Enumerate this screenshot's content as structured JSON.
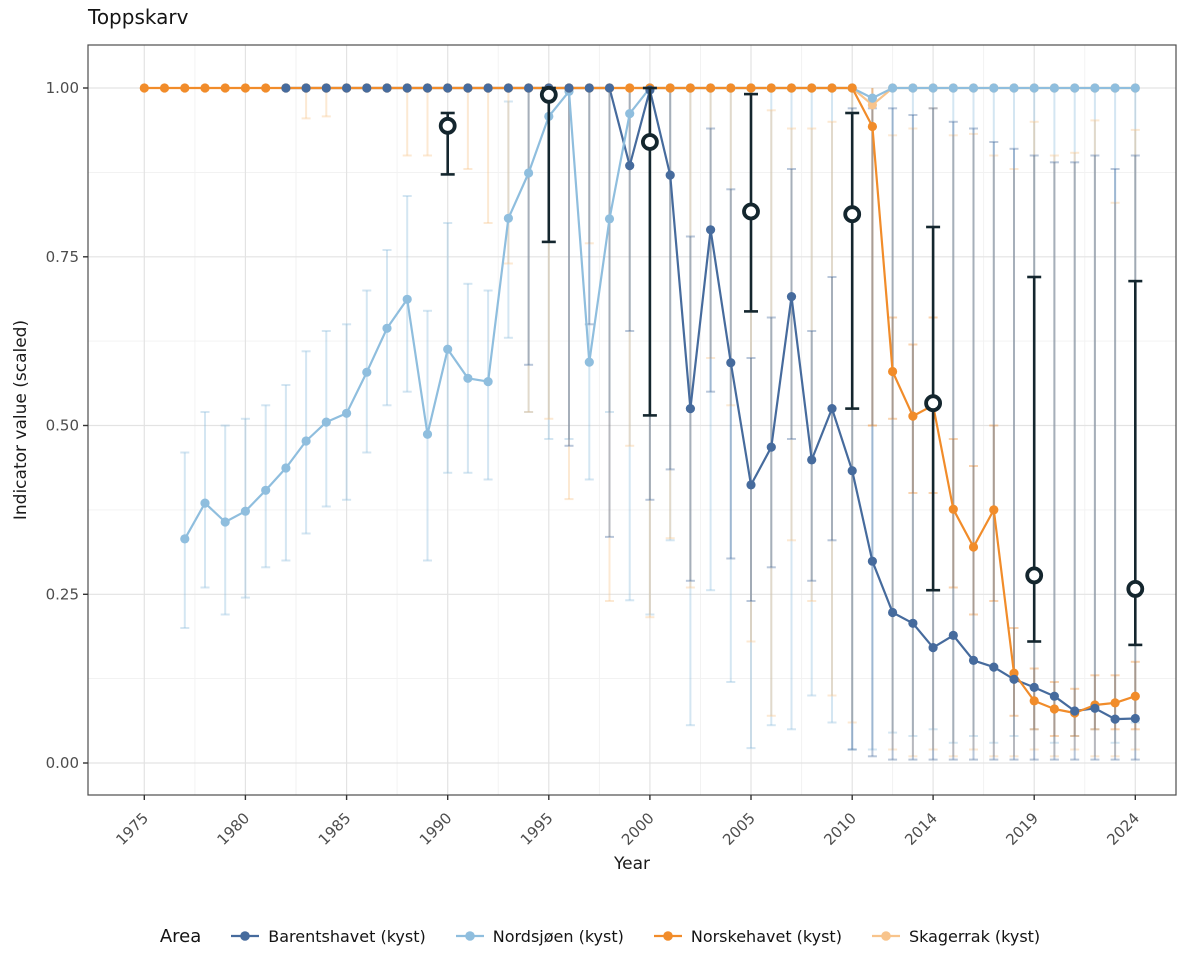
{
  "chart_data": {
    "type": "line",
    "title": "Toppskarv",
    "xlabel": "Year",
    "ylabel": "Indicator value (scaled)",
    "legend_title": "Area",
    "legend_position": "bottom",
    "grid": true,
    "xlim": [
      1972.2,
      2026.0
    ],
    "ylim": [
      -0.047,
      1.064
    ],
    "x_ticks": [
      1975,
      1980,
      1985,
      1990,
      1995,
      2000,
      2005,
      2010,
      2014,
      2019,
      2024
    ],
    "x_minor": [
      1977.5,
      1982.5,
      1987.5,
      1992.5,
      1997.5,
      2002.5,
      2007.5,
      2012,
      2016.5,
      2021.5
    ],
    "y_tick_values": [
      0,
      0.25,
      0.5,
      0.75,
      1.0
    ],
    "y_tick_labels": [
      "0.00",
      "0.25",
      "0.50",
      "0.75",
      "1.00"
    ],
    "y_minor": [
      0.125,
      0.375,
      0.625,
      0.875
    ],
    "series": [
      {
        "name": "Barentshavet (kyst)",
        "color": "#466b9d",
        "years": [
          1982,
          1983,
          1984,
          1985,
          1986,
          1987,
          1988,
          1989,
          1990,
          1991,
          1992,
          1993,
          1994,
          1995,
          1996,
          1997,
          1998,
          1999,
          2000,
          2001,
          2002,
          2003,
          2004,
          2005,
          2006,
          2007,
          2008,
          2009,
          2010,
          2011,
          2012,
          2013,
          2014,
          2015,
          2016,
          2017,
          2018,
          2019,
          2020,
          2021,
          2022,
          2023,
          2024
        ],
        "values": [
          1,
          1,
          1,
          1,
          1,
          1,
          1,
          1,
          1,
          1,
          1,
          1,
          1,
          1,
          1,
          1,
          1,
          0.885,
          0.997,
          0.871,
          0.525,
          0.79,
          0.593,
          0.412,
          0.468,
          0.691,
          0.449,
          0.525,
          0.433,
          0.299,
          0.223,
          0.207,
          0.171,
          0.189,
          0.152,
          0.142,
          0.124,
          0.112,
          0.099,
          0.077,
          0.081,
          0.065,
          0.066
        ],
        "ci": [
          null,
          null,
          null,
          null,
          null,
          null,
          null,
          null,
          null,
          null,
          null,
          null,
          [
            0.59,
            1
          ],
          null,
          [
            0.47,
            1
          ],
          [
            0.65,
            1
          ],
          [
            0.335,
            1
          ],
          [
            0.64,
            1
          ],
          [
            0.39,
            1
          ],
          [
            0.435,
            1
          ],
          [
            0.27,
            0.78
          ],
          [
            0.55,
            0.94
          ],
          [
            0.303,
            0.85
          ],
          [
            0.24,
            0.6
          ],
          [
            0.29,
            0.66
          ],
          [
            0.48,
            0.88
          ],
          [
            0.27,
            0.64
          ],
          [
            0.33,
            0.72
          ],
          [
            0.02,
            0.97
          ],
          [
            0.01,
            0.97
          ],
          [
            0.005,
            0.97
          ],
          [
            0.005,
            0.96
          ],
          [
            0.005,
            0.97
          ],
          [
            0.005,
            0.95
          ],
          [
            0.005,
            0.94
          ],
          [
            0.005,
            0.92
          ],
          [
            0.005,
            0.91
          ],
          [
            0.005,
            0.9
          ],
          [
            0.005,
            0.89
          ],
          [
            0.005,
            0.89
          ],
          [
            0.005,
            0.9
          ],
          [
            0.005,
            0.88
          ],
          [
            0.005,
            0.9
          ]
        ]
      },
      {
        "name": "Nordsjøen (kyst)",
        "color": "#8fbede",
        "years": [
          1977,
          1978,
          1979,
          1980,
          1981,
          1982,
          1983,
          1984,
          1985,
          1986,
          1987,
          1988,
          1989,
          1990,
          1991,
          1992,
          1993,
          1994,
          1995,
          1996,
          1997,
          1998,
          1999,
          2000,
          2001,
          2002,
          2003,
          2004,
          2005,
          2006,
          2007,
          2008,
          2009,
          2010,
          2011,
          2012,
          2013,
          2014,
          2015,
          2016,
          2017,
          2018,
          2019,
          2020,
          2021,
          2022,
          2023,
          2024
        ],
        "values": [
          0.332,
          0.385,
          0.357,
          0.373,
          0.404,
          0.437,
          0.477,
          0.505,
          0.518,
          0.579,
          0.644,
          0.687,
          0.487,
          0.613,
          0.57,
          0.565,
          0.807,
          0.874,
          0.958,
          0.995,
          0.594,
          0.806,
          0.962,
          1,
          1,
          1,
          1,
          1,
          1,
          1,
          1,
          1,
          1,
          1,
          0.985,
          1,
          1,
          1,
          1,
          1,
          1,
          1,
          1,
          1,
          1,
          1,
          1,
          1
        ],
        "ci": [
          [
            0.2,
            0.46
          ],
          [
            0.26,
            0.52
          ],
          [
            0.22,
            0.5
          ],
          [
            0.245,
            0.51
          ],
          [
            0.29,
            0.53
          ],
          [
            0.3,
            0.56
          ],
          [
            0.34,
            0.61
          ],
          [
            0.38,
            0.64
          ],
          [
            0.39,
            0.65
          ],
          [
            0.46,
            0.7
          ],
          [
            0.53,
            0.76
          ],
          [
            0.55,
            0.84
          ],
          [
            0.3,
            0.67
          ],
          [
            0.43,
            0.8
          ],
          [
            0.43,
            0.71
          ],
          [
            0.42,
            0.7
          ],
          [
            0.63,
            0.98
          ],
          [
            0.52,
            1
          ],
          [
            0.48,
            1
          ],
          [
            0.48,
            1
          ],
          [
            0.42,
            1
          ],
          [
            0.52,
            1
          ],
          [
            0.241,
            1
          ],
          [
            0.22,
            1
          ],
          [
            0.33,
            1
          ],
          [
            0.056,
            1
          ],
          [
            0.256,
            1
          ],
          [
            0.12,
            1
          ],
          [
            0.022,
            1
          ],
          [
            0.056,
            1
          ],
          [
            0.05,
            1
          ],
          [
            0.1,
            1
          ],
          [
            0.06,
            1
          ],
          [
            0.02,
            1
          ],
          [
            0.02,
            1
          ],
          [
            0.045,
            1
          ],
          [
            0.04,
            1
          ],
          [
            0.05,
            1
          ],
          [
            0.03,
            1
          ],
          [
            0.04,
            1
          ],
          [
            0.03,
            1
          ],
          [
            0.04,
            1
          ],
          [
            0.05,
            1
          ],
          [
            0.03,
            1
          ],
          [
            0.04,
            1
          ],
          [
            0.05,
            1
          ],
          [
            0.03,
            1
          ],
          [
            0.06,
            1
          ]
        ]
      },
      {
        "name": "Norskehavet (kyst)",
        "color": "#f18c2a",
        "years": [
          1975,
          1976,
          1977,
          1978,
          1979,
          1980,
          1981,
          1982,
          1983,
          1984,
          1985,
          1986,
          1987,
          1988,
          1989,
          1990,
          1991,
          1992,
          1993,
          1994,
          1995,
          1996,
          1997,
          1998,
          1999,
          2000,
          2001,
          2002,
          2003,
          2004,
          2005,
          2006,
          2007,
          2008,
          2009,
          2010,
          2011,
          2012,
          2013,
          2014,
          2015,
          2016,
          2017,
          2018,
          2019,
          2020,
          2021,
          2022,
          2023,
          2024
        ],
        "values": [
          1,
          1,
          1,
          1,
          1,
          1,
          1,
          1,
          1,
          1,
          1,
          1,
          1,
          1,
          1,
          1,
          1,
          1,
          1,
          1,
          1,
          1,
          1,
          1,
          1,
          1,
          1,
          1,
          1,
          1,
          1,
          1,
          1,
          1,
          1,
          1,
          0.943,
          0.58,
          0.514,
          0.53,
          0.376,
          0.32,
          0.375,
          0.133,
          0.092,
          0.08,
          0.074,
          0.086,
          0.089,
          0.099
        ],
        "ci": [
          null,
          null,
          null,
          null,
          null,
          null,
          null,
          null,
          null,
          null,
          null,
          null,
          null,
          null,
          null,
          null,
          null,
          null,
          null,
          null,
          null,
          null,
          null,
          null,
          null,
          null,
          null,
          null,
          null,
          null,
          null,
          null,
          null,
          null,
          null,
          null,
          [
            0.5,
            1
          ],
          [
            0.51,
            0.66
          ],
          [
            0.4,
            0.62
          ],
          [
            0.4,
            0.66
          ],
          [
            0.26,
            0.48
          ],
          [
            0.22,
            0.44
          ],
          [
            0.24,
            0.5
          ],
          [
            0.07,
            0.2
          ],
          [
            0.05,
            0.14
          ],
          [
            0.04,
            0.12
          ],
          [
            0.04,
            0.11
          ],
          [
            0.05,
            0.13
          ],
          [
            0.05,
            0.13
          ],
          [
            0.05,
            0.15
          ]
        ]
      },
      {
        "name": "Skagerrak (kyst)",
        "color": "#f8c48c",
        "years": [
          1983,
          1984,
          1985,
          1986,
          1987,
          1988,
          1989,
          1990,
          1991,
          1992,
          1993,
          1994,
          1995,
          1996,
          1997,
          1998,
          1999,
          2000,
          2001,
          2002,
          2003,
          2004,
          2005,
          2006,
          2007,
          2008,
          2009,
          2010,
          2011,
          2012,
          2013,
          2014,
          2015,
          2016,
          2017,
          2018,
          2019,
          2020,
          2021,
          2022,
          2023,
          2024
        ],
        "values": [
          1,
          1,
          1,
          1,
          1,
          1,
          1,
          1,
          1,
          1,
          1,
          1,
          1,
          1,
          1,
          1,
          1,
          1,
          1,
          1,
          1,
          1,
          1,
          1,
          1,
          1,
          1,
          1,
          0.975,
          1,
          1,
          1,
          1,
          1,
          1,
          1,
          1,
          1,
          1,
          1,
          1,
          1
        ],
        "ci": [
          [
            0.955,
            1
          ],
          [
            0.958,
            1
          ],
          null,
          null,
          null,
          [
            0.9,
            1
          ],
          [
            0.9,
            1
          ],
          null,
          [
            0.88,
            1
          ],
          [
            0.8,
            1
          ],
          [
            0.74,
            1
          ],
          [
            0.52,
            1
          ],
          [
            0.51,
            1
          ],
          [
            0.391,
            1
          ],
          [
            0.77,
            1
          ],
          [
            0.24,
            1
          ],
          [
            0.47,
            1
          ],
          [
            0.216,
            1
          ],
          [
            0.333,
            1
          ],
          [
            0.26,
            1
          ],
          [
            0.6,
            1
          ],
          [
            0.53,
            1
          ],
          [
            0.18,
            1
          ],
          [
            0.07,
            0.967
          ],
          [
            0.33,
            0.94
          ],
          [
            0.24,
            0.94
          ],
          [
            0.1,
            0.95
          ],
          [
            0.06,
            1
          ],
          [
            0.5,
            1
          ],
          [
            0.02,
            0.93
          ],
          [
            0.01,
            0.94
          ],
          [
            0.02,
            0.97
          ],
          [
            0.01,
            0.93
          ],
          [
            0.02,
            0.932
          ],
          [
            0.01,
            0.9
          ],
          [
            0.01,
            0.88
          ],
          [
            0.02,
            0.95
          ],
          [
            0.01,
            0.9
          ],
          [
            0.02,
            0.904
          ],
          [
            0.01,
            0.952
          ],
          [
            0.01,
            0.83
          ],
          [
            0.02,
            0.938
          ]
        ]
      }
    ],
    "assessment_points": {
      "name": "assessment-values",
      "color": "#14262e",
      "years": [
        1990,
        1995,
        2000,
        2005,
        2010,
        2014,
        2019,
        2024
      ],
      "values": [
        0.944,
        0.99,
        0.92,
        0.817,
        0.813,
        0.533,
        0.278,
        0.258
      ],
      "ci": [
        [
          0.872,
          0.963
        ],
        [
          0.772,
          1.0
        ],
        [
          0.515,
          1.0
        ],
        [
          0.669,
          0.991
        ],
        [
          0.525,
          0.963
        ],
        [
          0.256,
          0.794
        ],
        [
          0.18,
          0.72
        ],
        [
          0.175,
          0.714
        ]
      ]
    },
    "style": {
      "grid_major_color": "#e3e3e3",
      "grid_minor_color": "#f1f1f1",
      "panel_border_color": "#4d4d4d",
      "tick_label_color": "#4d4d4d",
      "errorbar_opacity": 0.38
    }
  }
}
